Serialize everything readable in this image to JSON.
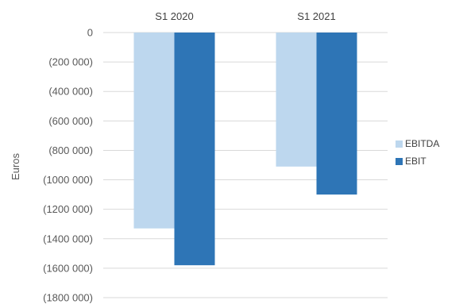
{
  "chart_data": {
    "type": "bar",
    "categories": [
      "S1 2020",
      "S1 2021"
    ],
    "series": [
      {
        "name": "EBITDA",
        "values": [
          -1330000,
          -910000
        ],
        "color": "#BDD7EE"
      },
      {
        "name": "EBIT",
        "values": [
          -1580000,
          -1100000
        ],
        "color": "#2E75B6"
      }
    ],
    "ylabel": "Euros",
    "ylim": [
      -1800000,
      0
    ],
    "yticks": [
      0,
      -200000,
      -400000,
      -600000,
      -800000,
      -1000000,
      -1200000,
      -1400000,
      -1600000,
      -1800000
    ],
    "ytick_labels": [
      "0",
      "(200 000)",
      "(400 000)",
      "(600 000)",
      "(800 000)",
      "(1000 000)",
      "(1200 000)",
      "(1400 000)",
      "(1600 000)",
      "(1800 000)"
    ],
    "x_axis_position": "top",
    "grid": true,
    "legend_position": "right"
  }
}
